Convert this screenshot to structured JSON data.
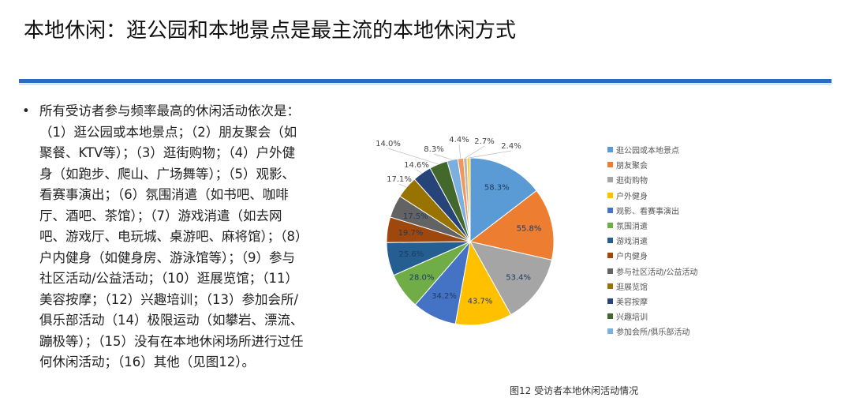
{
  "title": "本地休闲：逛公园和本地景点是最主流的本地休闲方式",
  "bullet": {
    "dot": "•",
    "text": "所有受访者参与频率最高的休闲活动依次是：\n（1）逛公园或本地景点；（2）朋友聚会（如聚餐、KTV等）；（3）逛街购物；（4）户外健身（如跑步、爬山、广场舞等）；（5）观影、看赛事演出；（6）氛围消遣（如书吧、咖啡厅、酒吧、茶馆）；（7）游戏消遣（如去网吧、游戏厅、电玩城、桌游吧、麻将馆）；（8）户内健身（如健身房、游泳馆等）；（9）参与社区活动/公益活动；（10）逛展览馆；（11）美容按摩；（12）兴趣培训；（13）参加会所/俱乐部活动（14）极限运动（如攀岩、漂流、蹦极等）；（15）没有在本地休闲场所进行过任何休闲活动；（16）其他（见图12）。"
  },
  "caption": "图12 受访者本地休闲活动情况",
  "chart_data": {
    "type": "pie",
    "title": "",
    "legend_position": "right",
    "categories": [
      "逛公园或本地景点",
      "朋友聚会",
      "逛街购物",
      "户外健身",
      "观影、看赛事演出",
      "氛围消遣",
      "游戏消遣",
      "户内健身",
      "参与社区活动/公益活动",
      "逛展览馆",
      "美容按摩",
      "兴趣培训",
      "参加会所/俱乐部活动",
      "",
      "",
      ""
    ],
    "values": [
      58.3,
      55.8,
      53.4,
      43.7,
      34.2,
      28.0,
      25.6,
      19.7,
      17.5,
      17.1,
      14.6,
      14.0,
      8.3,
      4.4,
      2.7,
      2.4
    ],
    "labels": [
      "58.3%",
      "55.8%",
      "53.4%",
      "43.7%",
      "34.2%",
      "28.0%",
      "25.6%",
      "19.7%",
      "17.5%",
      "17.1%",
      "14.6%",
      "14.0%",
      "8.3%",
      "4.4%",
      "2.7%",
      "2.4%"
    ],
    "colors": [
      "#5b9bd5",
      "#ed7d31",
      "#a5a5a5",
      "#ffc000",
      "#4472c4",
      "#70ad47",
      "#255e91",
      "#9e480e",
      "#636363",
      "#997300",
      "#264478",
      "#43682b",
      "#7cafdd",
      "#f1975a",
      "#b7b7b7",
      "#ffcd33"
    ]
  }
}
